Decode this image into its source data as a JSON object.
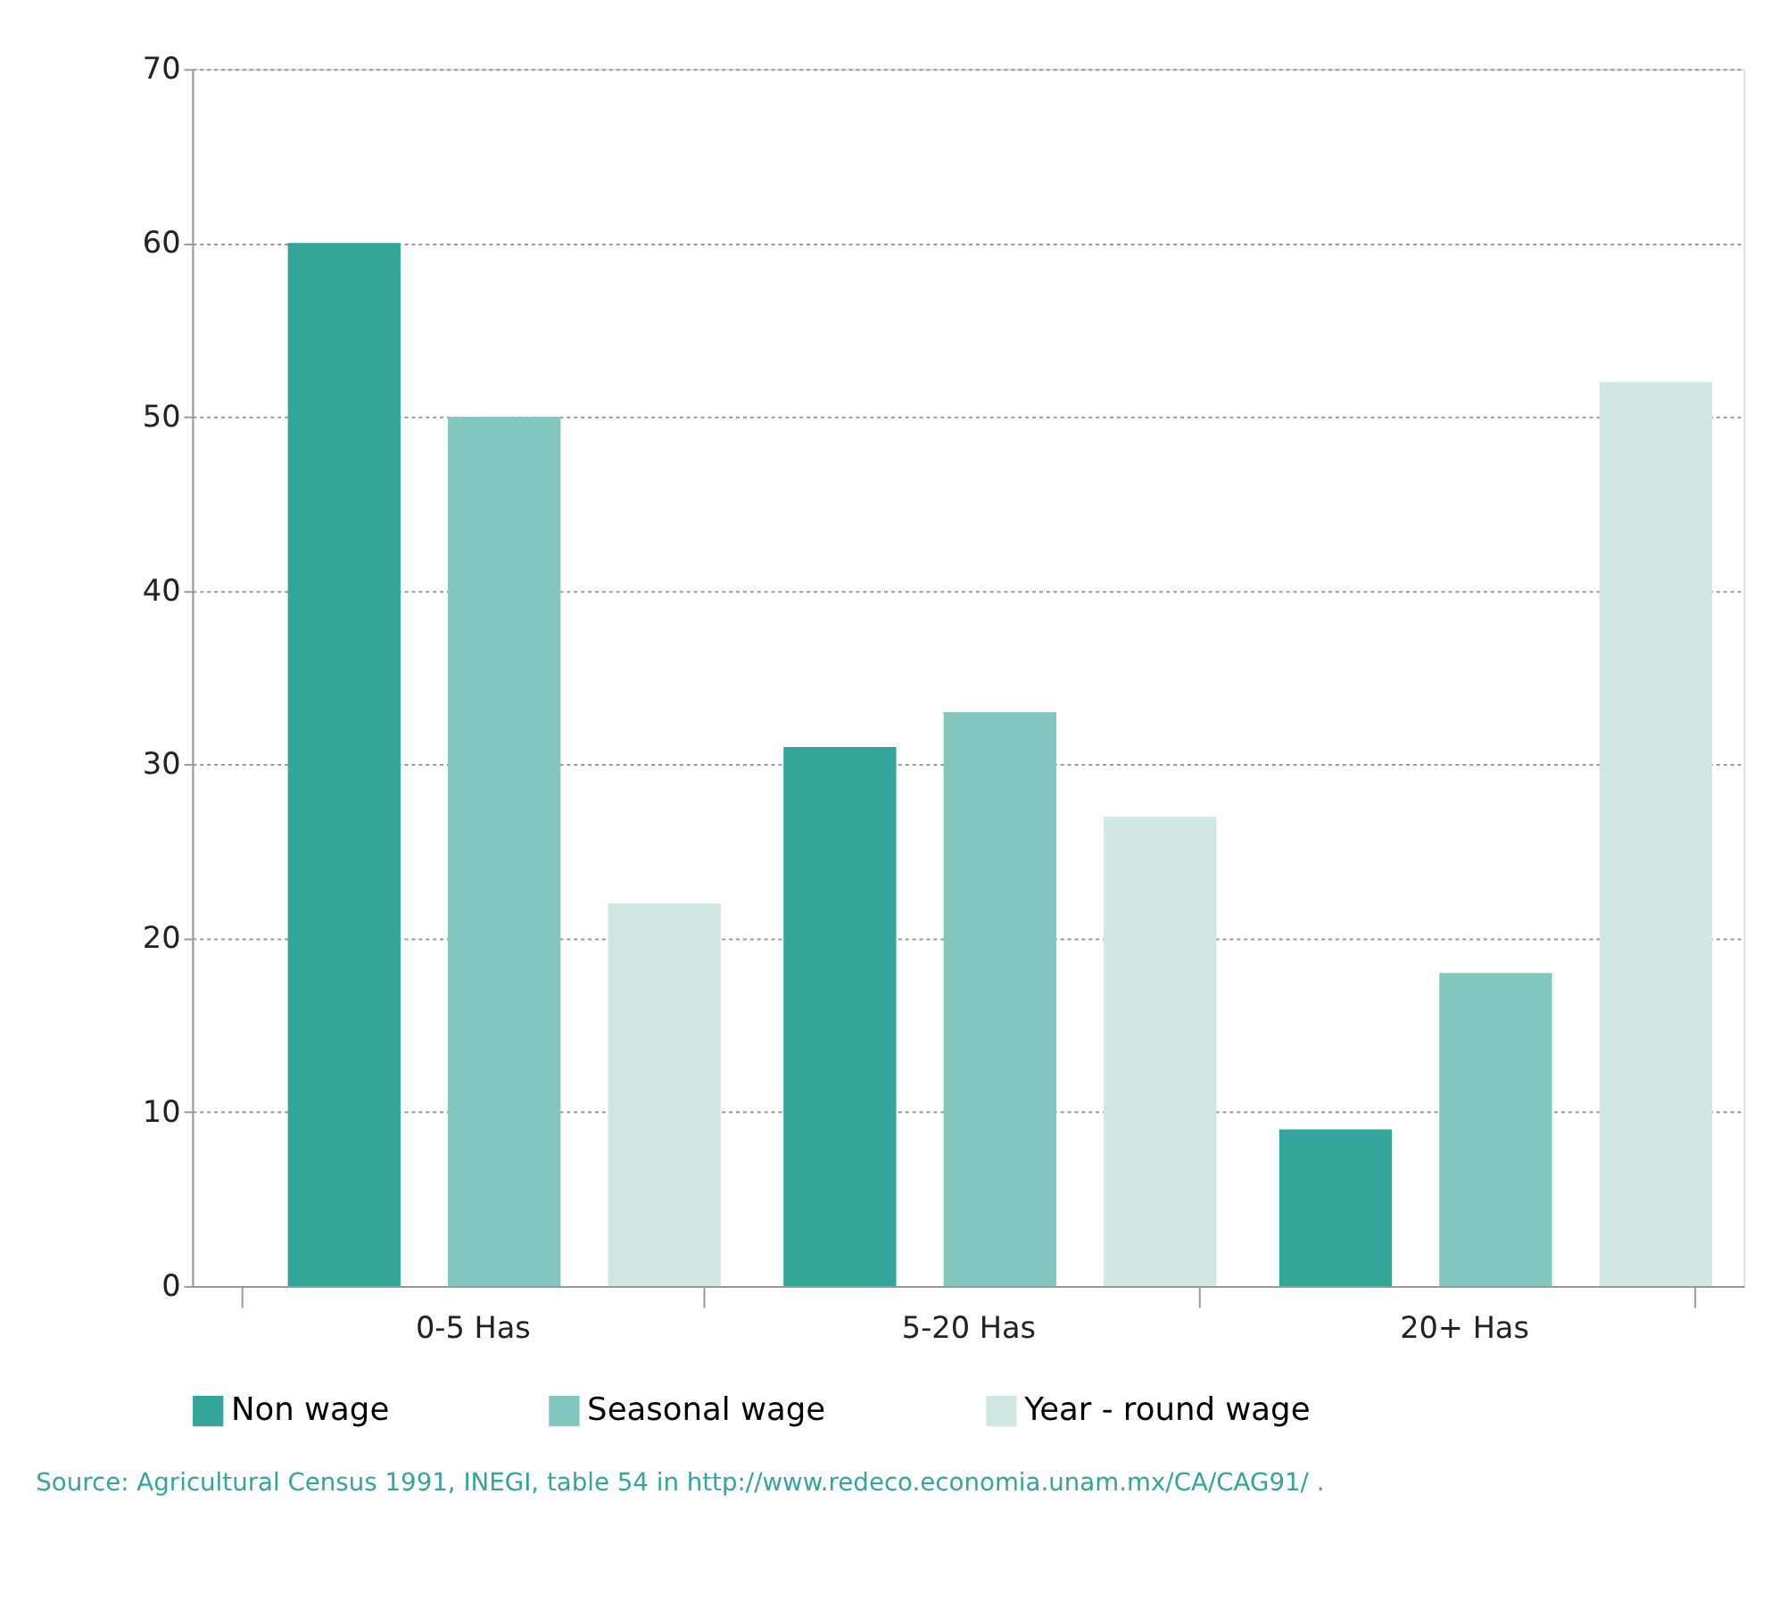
{
  "chart_data": {
    "type": "bar",
    "categories": [
      "0-5 Has",
      "5-20 Has",
      "20+ Has"
    ],
    "series": [
      {
        "name": "Non wage",
        "color": "#33a59a",
        "values": [
          60,
          31,
          9
        ]
      },
      {
        "name": "Seasonal wage",
        "color": "#82c7bd",
        "values": [
          50,
          33,
          18
        ]
      },
      {
        "name": "Year - round wage",
        "color": "#cfe8e4",
        "values": [
          22,
          27,
          52
        ]
      }
    ],
    "ylim": [
      0,
      70
    ],
    "yticks": [
      0,
      10,
      20,
      30,
      40,
      50,
      60,
      70
    ],
    "grid": "y",
    "legend": "bottom",
    "annotations": [
      "Source: Agricultural Census 1991, INEGI, table 54 in http://www.redeco.economia.unam.mx/CA/CAG91/ ."
    ]
  }
}
